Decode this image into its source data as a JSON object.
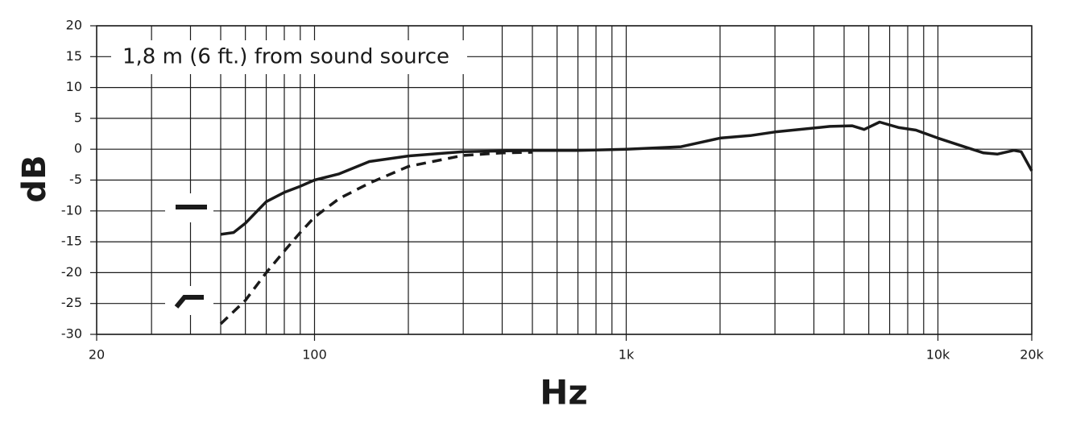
{
  "chart_data": {
    "type": "line",
    "annotation": "1,8 m (6 ft.) from sound source",
    "xlabel": "Hz",
    "ylabel": "dB",
    "xscale": "log",
    "grid": true,
    "xlim": [
      20,
      20000
    ],
    "ylim": [
      -30,
      20
    ],
    "xticks": [
      20,
      100,
      {
        "value": 1000,
        "label": "1k"
      },
      {
        "value": 10000,
        "label": "10k"
      },
      {
        "value": 20000,
        "label": "20k"
      }
    ],
    "xgrid": [
      20,
      30,
      40,
      50,
      60,
      70,
      80,
      90,
      100,
      200,
      300,
      400,
      500,
      600,
      700,
      800,
      900,
      1000,
      2000,
      3000,
      4000,
      5000,
      6000,
      7000,
      8000,
      9000,
      10000,
      20000
    ],
    "yticks": [
      -30,
      -25,
      -20,
      -15,
      -10,
      -5,
      0,
      5,
      10,
      15,
      20
    ],
    "series": [
      {
        "color": "#1a1a1a",
        "dash": false,
        "x": [
          50,
          55,
          60,
          70,
          80,
          90,
          100,
          120,
          150,
          200,
          300,
          500,
          700,
          1000,
          1500,
          2000,
          2500,
          3000,
          4500,
          5300,
          5800,
          6500,
          7500,
          8500,
          10000,
          12000,
          14000,
          15500,
          17500,
          18500,
          20000
        ],
        "values": [
          -13.8,
          -13.5,
          -12,
          -8.5,
          -7,
          -6,
          -5,
          -4,
          -2,
          -1.1,
          -0.4,
          -0.2,
          -0.2,
          0,
          0.4,
          1.8,
          2.2,
          2.8,
          3.7,
          3.8,
          3.2,
          4.4,
          3.5,
          3.1,
          1.8,
          0.5,
          -0.6,
          -0.8,
          -0.2,
          -0.4,
          -3.5
        ]
      },
      {
        "color": "#1a1a1a",
        "dash": true,
        "x": [
          50,
          60,
          70,
          80,
          90,
          100,
          120,
          150,
          200,
          300,
          400,
          500
        ],
        "values": [
          -28.3,
          -24.5,
          -20,
          -16.5,
          -13.5,
          -11,
          -8,
          -5.5,
          -2.8,
          -1,
          -0.6,
          -0.5
        ]
      }
    ]
  }
}
